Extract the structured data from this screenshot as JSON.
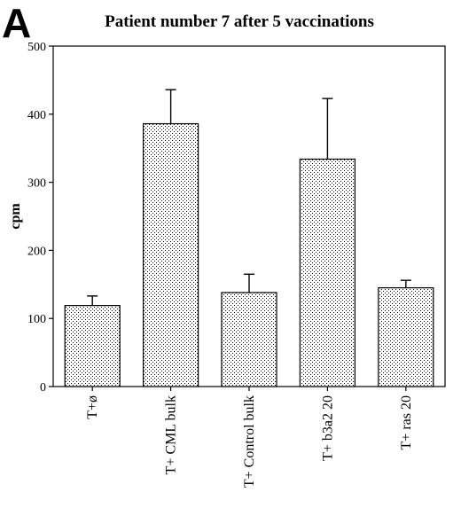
{
  "panel_label": "A",
  "chart_data": {
    "type": "bar",
    "title": "Patient number 7 after 5 vaccinations",
    "xlabel": "",
    "ylabel": "cpm",
    "ylim": [
      0,
      500
    ],
    "yticks": [
      0,
      100,
      200,
      300,
      400,
      500
    ],
    "categories": [
      "T+ø",
      "T+ CML bulk",
      "T+ Control bulk",
      "T+ b3a2 20",
      "T+ ras 20"
    ],
    "values": [
      119,
      386,
      138,
      334,
      145
    ],
    "errors": [
      14,
      50,
      27,
      89,
      11
    ],
    "grid": false,
    "legend": "none",
    "bar_fill": "dotted-stipple",
    "colors": {
      "bar_stroke": "#000000",
      "bar_dot": "#000000",
      "background": "#ffffff"
    }
  }
}
